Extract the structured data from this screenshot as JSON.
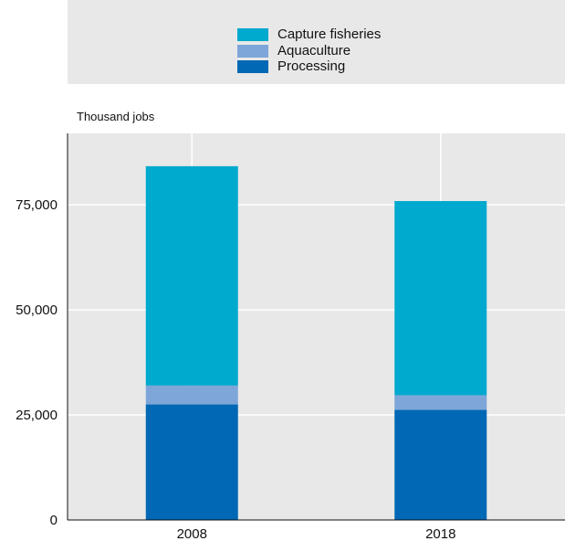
{
  "chart_data": {
    "type": "bar",
    "stacked": true,
    "ylabel": "Thousand jobs",
    "categories": [
      "2008",
      "2018"
    ],
    "series": [
      {
        "name": "Processing",
        "color": "#0068b4",
        "values": [
          27500,
          26200
        ]
      },
      {
        "name": "Aquaculture",
        "color": "#7ea6d8",
        "values": [
          4500,
          3500
        ]
      },
      {
        "name": "Capture fisheries",
        "color": "#00a9ce",
        "values": [
          52200,
          46200
        ]
      }
    ],
    "legend": [
      "Capture fisheries",
      "Aquaculture",
      "Processing"
    ],
    "legend_placement": "top",
    "yticks": [
      0,
      25000,
      50000,
      75000
    ],
    "ytick_labels": [
      "0",
      "25,000",
      "50,000",
      "75,000"
    ],
    "ylim": [
      0,
      92000
    ],
    "grid": true
  }
}
